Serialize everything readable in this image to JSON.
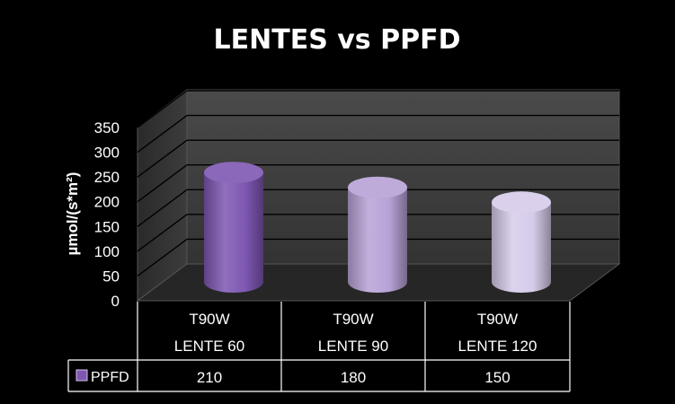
{
  "chart_data": {
    "type": "bar",
    "title": "LENTES vs PPFD",
    "ylabel": "µmol/(s*m²)",
    "xlabel": "",
    "ylim": [
      0,
      350
    ],
    "yticks": [
      0,
      50,
      100,
      150,
      200,
      250,
      300,
      350
    ],
    "categories": [
      [
        "T90W",
        "LENTE 60"
      ],
      [
        "T90W",
        "LENTE 90"
      ],
      [
        "T90W",
        "LENTE 120"
      ]
    ],
    "series": [
      {
        "name": "PPFD",
        "values": [
          210,
          180,
          150
        ]
      }
    ],
    "grid": true,
    "legend": "data-table",
    "data_table": true,
    "colors": {
      "background": "#000000",
      "plot_back": "#3a3a3a",
      "plot_floor": "#262626",
      "grid": "#000000",
      "bars": [
        "#7e57b2",
        "#b7a2d6",
        "#d6cbea"
      ],
      "legend_key": "#7e57b2"
    }
  }
}
